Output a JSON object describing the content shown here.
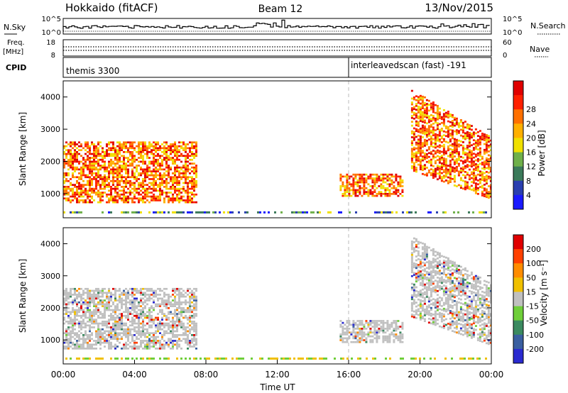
{
  "header": {
    "radar_title": "Hokkaido (fitACF)",
    "beam_label": "Beam 12",
    "date_label": "13/Nov/2015"
  },
  "strip_panels": {
    "nsky_label": "N.Sky",
    "nsky_ticks": [
      "10^5",
      "10^0"
    ],
    "nsearch_label": "N.Search",
    "nsearch_ticks": [
      "10^5",
      "10^0"
    ],
    "freq_label_1": "Freq.",
    "freq_label_2": "[MHz]",
    "freq_ticks": [
      "18",
      "8"
    ],
    "nave_label": "Nave",
    "nave_ticks": [
      "60",
      "0"
    ],
    "cpid_label": "CPID",
    "cpid_segments": [
      {
        "name": "themis 3300",
        "start_hour": 0
      },
      {
        "name": "interleavedscan (fast) -191",
        "start_hour": 16
      }
    ]
  },
  "chart_data": [
    {
      "type": "heatmap",
      "panel": "power",
      "ylabel": "Slant Range [km]",
      "y_ticks": [
        "1000",
        "2000",
        "3000",
        "4000"
      ],
      "ylim": [
        250,
        4500
      ],
      "xlim_hours": [
        0,
        24
      ],
      "colorbar_label": "Power [dB]",
      "colorbar_ticks": [
        "4",
        "8",
        "12",
        "16",
        "20",
        "24",
        "28"
      ],
      "colors": [
        "#1a1aff",
        "#2a3fb0",
        "#3b7a5a",
        "#6fb04a",
        "#f0e000",
        "#ffb000",
        "#ff7000",
        "#ff2000",
        "#e00000"
      ],
      "echo_regions": [
        {
          "hours": [
            0,
            7.5
          ],
          "range_km": [
            700,
            2600
          ],
          "level": "strong"
        },
        {
          "hours": [
            15.5,
            19.0
          ],
          "range_km": [
            900,
            1600
          ],
          "level": "medium"
        },
        {
          "hours": [
            19.5,
            24.0
          ],
          "range_km": [
            800,
            4200
          ],
          "level": "strong"
        }
      ]
    },
    {
      "type": "heatmap",
      "panel": "velocity",
      "ylabel": "Slant Range [km]",
      "y_ticks": [
        "1000",
        "2000",
        "3000",
        "4000"
      ],
      "ylim": [
        250,
        4500
      ],
      "xlim_hours": [
        0,
        24
      ],
      "colorbar_label": "Velocity [m s⁻¹]",
      "colorbar_ticks": [
        "200",
        "100",
        "50",
        "15",
        "-15",
        "-50",
        "-100",
        "-200"
      ],
      "colors": [
        "#2a2ad0",
        "#3a5fa0",
        "#3b8a60",
        "#6fcf3a",
        "#c0c0c0",
        "#f0c000",
        "#ff8c00",
        "#ff4000",
        "#e00000"
      ],
      "echo_regions": [
        {
          "hours": [
            0,
            7.5
          ],
          "range_km": [
            700,
            2600
          ],
          "level": "ground-scatter"
        },
        {
          "hours": [
            15.5,
            19.0
          ],
          "range_km": [
            900,
            1600
          ],
          "level": "ground-scatter"
        },
        {
          "hours": [
            19.5,
            24.0
          ],
          "range_km": [
            800,
            4200
          ],
          "level": "ground-scatter"
        }
      ]
    }
  ],
  "x_axis": {
    "ticks": [
      "00:00",
      "04:00",
      "08:00",
      "12:00",
      "16:00",
      "20:00",
      "00:00"
    ],
    "label": "Time UT"
  }
}
